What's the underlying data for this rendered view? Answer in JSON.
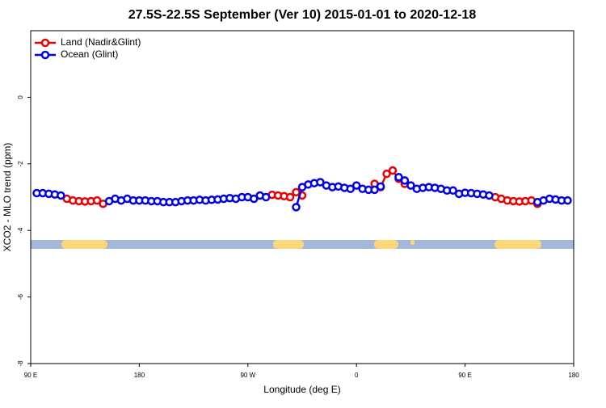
{
  "chart_data": {
    "type": "line",
    "title": "27.5S-22.5S September (Ver 10)   2015-01-01 to 2020-12-18",
    "x_label": "Longitude (deg E)",
    "y_label": "XCO2 - MLO trend (ppm)",
    "x": [
      95,
      100,
      105,
      110,
      115,
      120,
      125,
      130,
      135,
      140,
      145,
      150,
      155,
      160,
      165,
      170,
      175,
      180,
      185,
      190,
      195,
      200,
      205,
      210,
      215,
      220,
      225,
      230,
      235,
      240,
      245,
      250,
      255,
      260,
      265,
      270,
      275,
      280,
      285,
      290,
      295,
      300,
      305,
      310,
      315,
      320,
      325,
      330,
      335,
      340,
      345,
      350,
      355,
      360,
      365,
      370,
      375,
      380,
      385,
      390,
      395,
      400,
      405,
      410,
      415,
      420,
      425,
      430,
      435,
      440,
      445,
      450,
      455,
      460,
      465,
      470,
      475,
      480,
      485,
      490,
      495,
      500,
      505,
      510,
      515,
      520,
      525,
      530,
      535
    ],
    "series": [
      {
        "name": "Land (Nadir&Glint)",
        "color": "#ee0000",
        "values": [
          null,
          null,
          null,
          null,
          null,
          -3.05,
          -3.1,
          -3.12,
          -3.13,
          -3.12,
          -3.1,
          -3.2,
          null,
          null,
          null,
          null,
          null,
          null,
          null,
          null,
          null,
          null,
          null,
          null,
          null,
          null,
          null,
          null,
          null,
          null,
          null,
          null,
          null,
          null,
          null,
          null,
          null,
          null,
          null,
          -2.93,
          -2.95,
          -2.97,
          -3.0,
          -2.85,
          -2.95,
          null,
          null,
          null,
          null,
          null,
          null,
          null,
          null,
          null,
          null,
          null,
          -2.6,
          -2.7,
          -2.3,
          -2.2,
          -2.45,
          -2.6,
          -2.65,
          null,
          null,
          null,
          null,
          null,
          null,
          null,
          null,
          null,
          null,
          null,
          null,
          null,
          -3.0,
          -3.05,
          -3.1,
          -3.12,
          -3.13,
          -3.12,
          -3.1,
          -3.2,
          null,
          null,
          null,
          null,
          null
        ]
      },
      {
        "name": "Ocean (Glint)",
        "color": "#0000ee",
        "values": [
          -2.88,
          -2.88,
          -2.9,
          -2.92,
          -2.95,
          null,
          null,
          null,
          null,
          null,
          null,
          null,
          -3.12,
          -3.05,
          -3.1,
          -3.05,
          -3.1,
          -3.1,
          -3.1,
          -3.12,
          -3.12,
          -3.15,
          -3.15,
          -3.15,
          -3.12,
          -3.1,
          -3.1,
          -3.08,
          -3.1,
          -3.08,
          -3.07,
          -3.05,
          -3.03,
          -3.05,
          -3.0,
          -3.0,
          -3.05,
          -2.95,
          -3.0,
          null,
          null,
          null,
          null,
          -3.3,
          -2.7,
          -2.62,
          -2.58,
          -2.55,
          -2.65,
          -2.7,
          -2.68,
          -2.72,
          -2.75,
          -2.65,
          -2.75,
          -2.78,
          -2.78,
          -2.68,
          null,
          null,
          -2.4,
          -2.5,
          -2.65,
          -2.75,
          -2.72,
          -2.7,
          -2.72,
          -2.75,
          -2.8,
          -2.8,
          -2.9,
          -2.87,
          -2.88,
          -2.9,
          -2.92,
          -2.95,
          null,
          null,
          null,
          null,
          null,
          null,
          null,
          -3.15,
          -3.1,
          -3.05,
          -3.07,
          -3.1,
          -3.1
        ]
      }
    ],
    "xlim": [
      90,
      540
    ],
    "xticks": [
      {
        "value": 90,
        "label": "90 E"
      },
      180,
      {
        "value": 270,
        "label": "90 W"
      },
      {
        "value": 360,
        "label": "0"
      },
      {
        "value": 450,
        "label": "90 E"
      },
      {
        "value": 540,
        "label": "180"
      }
    ],
    "ylim": [
      -8,
      2
    ],
    "yticks": [
      0,
      -2,
      -4,
      -6,
      -8
    ],
    "legend": "top-left"
  }
}
